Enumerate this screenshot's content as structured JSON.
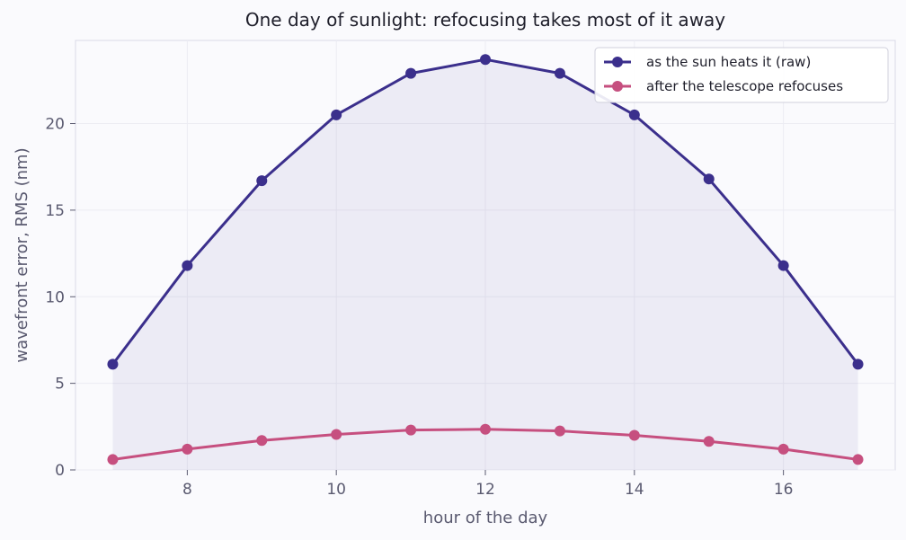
{
  "chart_data": {
    "type": "line",
    "title": "One day of sunlight: refocusing takes most of it away",
    "xlabel": "hour of the day",
    "ylabel": "wavefront error, RMS  (nm)",
    "x": [
      7,
      8,
      9,
      10,
      11,
      12,
      13,
      14,
      15,
      16,
      17
    ],
    "xlim": [
      6.5,
      17.5
    ],
    "ylim": [
      0,
      24.8
    ],
    "xticks": [
      8,
      10,
      12,
      14,
      16
    ],
    "yticks": [
      0,
      5,
      10,
      15,
      20
    ],
    "grid": true,
    "legend_position": "top-right",
    "series": [
      {
        "name": "as the sun heats it (raw)",
        "color": "#3b2f8c",
        "fill": true,
        "values": [
          6.1,
          11.8,
          16.7,
          20.5,
          22.9,
          23.7,
          22.9,
          20.5,
          16.8,
          11.8,
          6.1
        ]
      },
      {
        "name": "after the telescope refocuses",
        "color": "#c64f7f",
        "fill": false,
        "values": [
          0.6,
          1.2,
          1.7,
          2.05,
          2.3,
          2.35,
          2.25,
          2.0,
          1.65,
          1.2,
          0.6
        ]
      }
    ]
  }
}
